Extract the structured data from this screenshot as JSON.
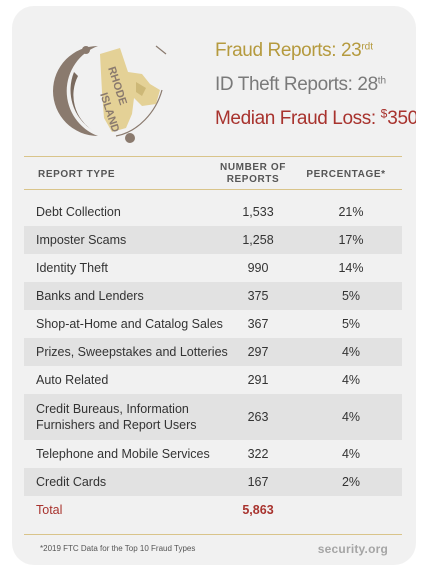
{
  "stats": {
    "fraud_label": "Fraud Reports: 23",
    "fraud_suffix": "rdt",
    "idtheft_label": "ID Theft Reports: 28",
    "idtheft_suffix": "th",
    "loss_label": "Median Fraud Loss: ",
    "loss_currency": "$",
    "loss_value": "350"
  },
  "logo": {
    "state_text": "RHODE ISLAND",
    "icon": "rhode-island-state-map-icon"
  },
  "table": {
    "headers": {
      "type": "REPORT TYPE",
      "number_line1": "NUMBER OF",
      "number_line2": "REPORTS",
      "percentage": "PERCENTAGE*"
    },
    "rows": [
      {
        "type": "Debt Collection",
        "number": "1,533",
        "percentage": "21%"
      },
      {
        "type": "Imposter Scams",
        "number": "1,258",
        "percentage": "17%"
      },
      {
        "type": "Identity Theft",
        "number": "990",
        "percentage": "14%"
      },
      {
        "type": "Banks and Lenders",
        "number": "375",
        "percentage": "5%"
      },
      {
        "type": "Shop-at-Home and Catalog Sales",
        "number": "367",
        "percentage": "5%"
      },
      {
        "type": "Prizes, Sweepstakes and Lotteries",
        "number": "297",
        "percentage": "4%"
      },
      {
        "type": "Auto Related",
        "number": "291",
        "percentage": "4%"
      },
      {
        "type_line1": "Credit Bureaus, Information",
        "type_line2": "Furnishers and Report Users",
        "number": "263",
        "percentage": "4%"
      },
      {
        "type": "Telephone and Mobile Services",
        "number": "322",
        "percentage": "4%"
      },
      {
        "type": "Credit Cards",
        "number": "167",
        "percentage": "2%"
      }
    ],
    "total": {
      "label": "Total",
      "number": "5,863"
    }
  },
  "footer": {
    "note": "*2019 FTC Data for the Top 10 Fraud Types",
    "brand": "security.org"
  },
  "colors": {
    "gold": "#b59a3e",
    "red": "#a8332e",
    "gray": "#7a7a7a",
    "rule": "#d9c48a",
    "shade": "#e2e2e2"
  }
}
